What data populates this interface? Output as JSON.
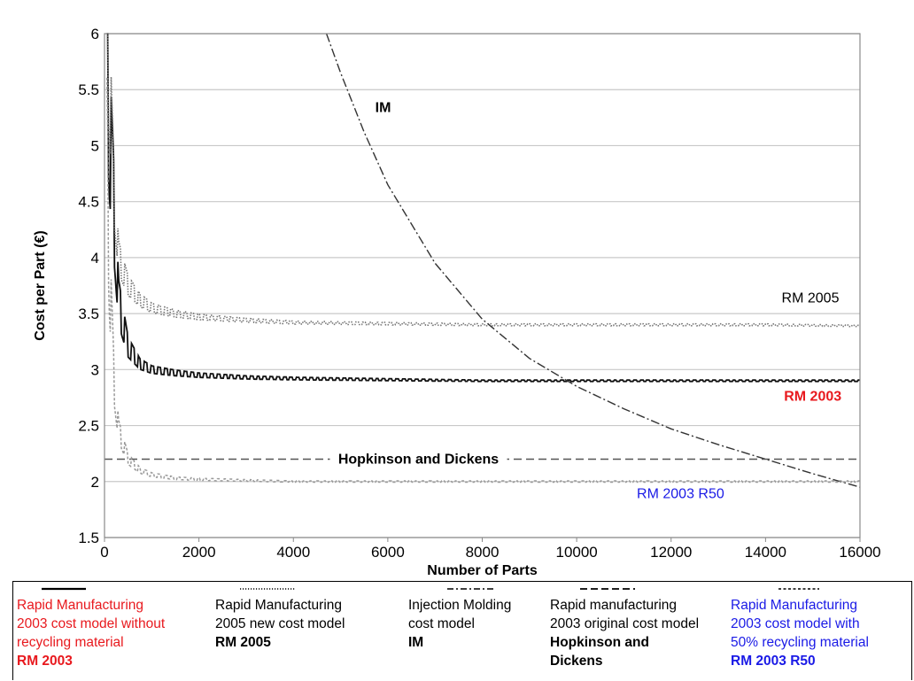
{
  "chart_data": {
    "type": "line",
    "title": "",
    "xlabel": "Number of Parts",
    "ylabel": "Cost per Part (€)",
    "xlim": [
      0,
      16000
    ],
    "ylim": [
      1.5,
      6
    ],
    "x_ticks": [
      "0",
      "2000",
      "4000",
      "6000",
      "8000",
      "10000",
      "12000",
      "14000",
      "16000"
    ],
    "y_ticks": [
      "1.5",
      "2",
      "2.5",
      "3",
      "3.5",
      "4",
      "4.5",
      "5",
      "5.5",
      "6"
    ],
    "grid": "horizontal",
    "series": [
      {
        "name": "RM 2003",
        "x": [
          50,
          100,
          200,
          300,
          500,
          750,
          1000,
          1500,
          2000,
          3000,
          4000,
          6000,
          8000,
          10000,
          12000,
          14000,
          16000
        ],
        "y": [
          6.0,
          5.2,
          4.4,
          3.6,
          3.2,
          3.05,
          3.0,
          2.97,
          2.95,
          2.93,
          2.92,
          2.91,
          2.9,
          2.9,
          2.9,
          2.9,
          2.9
        ],
        "color": "#111111"
      },
      {
        "name": "RM 2005",
        "x": [
          50,
          100,
          200,
          300,
          500,
          750,
          1000,
          1500,
          2000,
          3000,
          4000,
          6000,
          8000,
          10000,
          12000,
          14000,
          16000
        ],
        "y": [
          6.0,
          5.6,
          4.6,
          4.0,
          3.75,
          3.62,
          3.55,
          3.5,
          3.47,
          3.44,
          3.42,
          3.41,
          3.4,
          3.4,
          3.4,
          3.4,
          3.39
        ],
        "color": "#777777"
      },
      {
        "name": "IM",
        "x": [
          4700,
          5000,
          5500,
          6000,
          7000,
          8000,
          9000,
          10000,
          11000,
          12000,
          13000,
          14000,
          15000,
          16000
        ],
        "y": [
          6.0,
          5.65,
          5.12,
          4.65,
          3.95,
          3.45,
          3.1,
          2.85,
          2.65,
          2.47,
          2.33,
          2.2,
          2.07,
          1.95
        ],
        "color": "#333333"
      },
      {
        "name": "Hopkinson and Dickens",
        "x": [
          0,
          16000
        ],
        "y": [
          2.2,
          2.2
        ],
        "color": "#555555"
      },
      {
        "name": "RM 2003 R50",
        "x": [
          50,
          100,
          200,
          300,
          500,
          750,
          1000,
          1500,
          2000,
          3000,
          4000,
          6000,
          8000,
          10000,
          12000,
          14000,
          16000
        ],
        "y": [
          5.0,
          3.9,
          2.9,
          2.45,
          2.2,
          2.1,
          2.06,
          2.03,
          2.02,
          2.01,
          2.0,
          2.0,
          2.0,
          2.0,
          2.0,
          2.0,
          2.0
        ],
        "color": "#999999"
      }
    ],
    "annotations": [
      {
        "text": "IM",
        "x": 5900,
        "y": 5.3,
        "color": "#000000",
        "bold": true
      },
      {
        "text": "RM 2005",
        "x": 14950,
        "y": 3.6,
        "color": "#000000",
        "bold": false
      },
      {
        "text": "RM 2003",
        "x": 15000,
        "y": 2.72,
        "color": "#e8191e",
        "bold": true
      },
      {
        "text": "Hopkinson and Dickens",
        "x": 6650,
        "y": 2.16,
        "color": "#000000",
        "bold": true
      },
      {
        "text": "RM 2003 R50",
        "x": 12200,
        "y": 1.85,
        "color": "#1a1ae6",
        "bold": false
      }
    ]
  },
  "legend": [
    {
      "desc": "Rapid Manufacturing\n2003 cost model without\nrecycling material",
      "code": "RM 2003",
      "color": "#e8191e",
      "symbol": "solid"
    },
    {
      "desc": "Rapid Manufacturing\n2005 new cost model",
      "code": "RM 2005",
      "color": "#000000",
      "symbol": "dotted"
    },
    {
      "desc": "Injection Molding\ncost model",
      "code": "IM",
      "color": "#000000",
      "symbol": "dashdot"
    },
    {
      "desc": "Rapid manufacturing\n2003 original cost model",
      "code": "Hopkinson and\nDickens",
      "color": "#000000",
      "symbol": "dashed"
    },
    {
      "desc": "Rapid Manufacturing\n2003 cost model with\n50% recycling material",
      "code": "RM 2003 R50",
      "color": "#1a1ae6",
      "symbol": "shortdash"
    }
  ]
}
